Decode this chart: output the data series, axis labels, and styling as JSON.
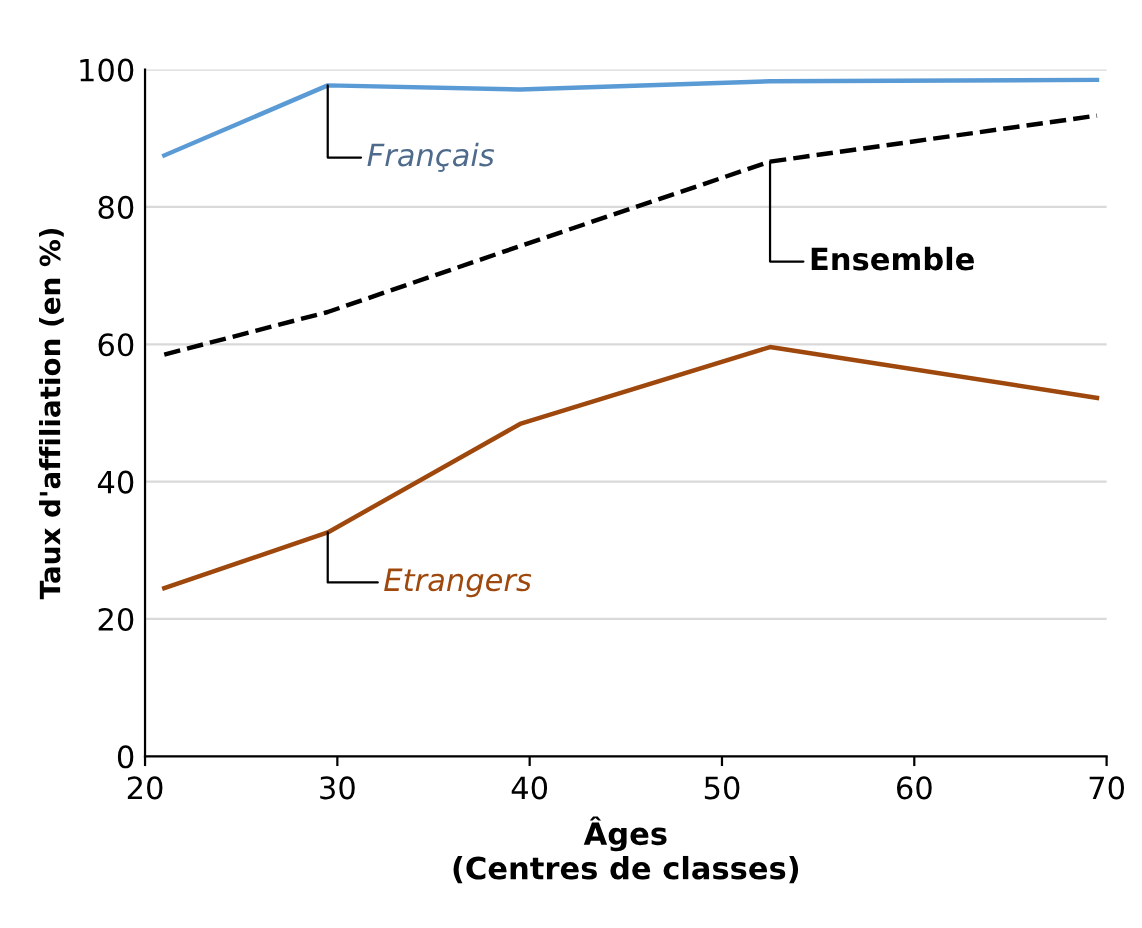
{
  "chart_data": {
    "type": "line",
    "xlabel": "Âges\n(Centres de classes)",
    "ylabel": "Taux d'affiliation (en %)",
    "xlim": [
      20,
      70
    ],
    "xticks": [
      20,
      30,
      40,
      50,
      60,
      70
    ],
    "ylim": [
      0,
      100
    ],
    "yticks": [
      0,
      20,
      40,
      60,
      80,
      100
    ],
    "grid": "y",
    "legend": false,
    "marker": "none",
    "series": [
      {
        "name": "Français",
        "color": "#5b9bd5",
        "line_style": "solid",
        "x": [
          21,
          29.5,
          39.5,
          52.5,
          69.5
        ],
        "values": [
          87.5,
          97.7,
          97.1,
          98.3,
          98.5
        ]
      },
      {
        "name": "Ensemble",
        "color": "#000000",
        "line_style": "dashed",
        "x": [
          21,
          29.5,
          39.5,
          52.5,
          69.5
        ],
        "values": [
          58.5,
          64.7,
          74.3,
          86.6,
          93.3
        ]
      },
      {
        "name": "Etrangers",
        "color": "#9e480e",
        "line_style": "solid",
        "x": [
          21,
          29.5,
          39.5,
          52.5,
          69.5
        ],
        "values": [
          24.5,
          32.6,
          48.4,
          59.6,
          52.2
        ]
      }
    ]
  }
}
